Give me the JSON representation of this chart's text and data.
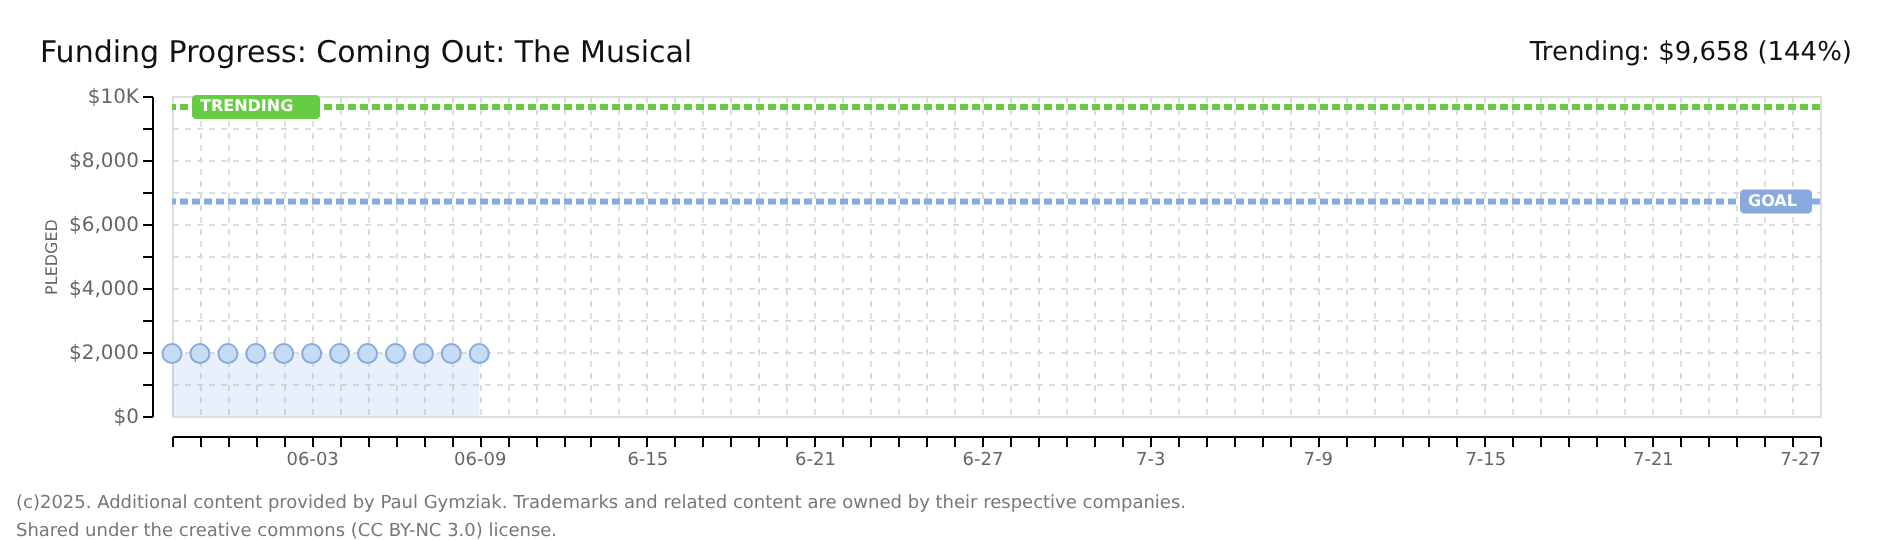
{
  "chart_data": {
    "type": "area",
    "title": "Funding Progress: Coming Out: The Musical",
    "ylabel": "PLEDGED",
    "x": [
      "2025-05-29",
      "2025-05-30",
      "2025-05-31",
      "2025-06-01",
      "2025-06-02",
      "2025-06-03",
      "2025-06-04",
      "2025-06-05",
      "2025-06-06",
      "2025-06-07",
      "2025-06-08",
      "2025-06-09"
    ],
    "series": [
      {
        "color": "#88aadd",
        "values": [
          1950,
          1950,
          1950,
          1950,
          1950,
          1950,
          1950,
          1950,
          1950,
          1950,
          1950,
          1950
        ]
      }
    ],
    "marker": "circle",
    "grid": true,
    "xlim": [
      "2025-05-29",
      "2025-07-27"
    ],
    "xticks": [
      {
        "value": "2025-05-29",
        "label": null
      },
      {
        "value": "2025-05-30",
        "label": null
      },
      {
        "value": "2025-05-31",
        "label": null
      },
      {
        "value": "2025-06-01",
        "label": null
      },
      {
        "value": "2025-06-02",
        "label": null
      },
      {
        "value": "2025-06-03",
        "label": "06-03"
      },
      {
        "value": "2025-06-04",
        "label": null
      },
      {
        "value": "2025-06-05",
        "label": null
      },
      {
        "value": "2025-06-06",
        "label": null
      },
      {
        "value": "2025-06-07",
        "label": null
      },
      {
        "value": "2025-06-08",
        "label": null
      },
      {
        "value": "2025-06-09",
        "label": "06-09"
      },
      {
        "value": "2025-06-10",
        "label": null
      },
      {
        "value": "2025-06-11",
        "label": null
      },
      {
        "value": "2025-06-12",
        "label": null
      },
      {
        "value": "2025-06-13",
        "label": null
      },
      {
        "value": "2025-06-14",
        "label": null
      },
      {
        "value": "2025-06-15",
        "label": "6-15"
      },
      {
        "value": "2025-06-16",
        "label": null
      },
      {
        "value": "2025-06-17",
        "label": null
      },
      {
        "value": "2025-06-18",
        "label": null
      },
      {
        "value": "2025-06-19",
        "label": null
      },
      {
        "value": "2025-06-20",
        "label": null
      },
      {
        "value": "2025-06-21",
        "label": "6-21"
      },
      {
        "value": "2025-06-22",
        "label": null
      },
      {
        "value": "2025-06-23",
        "label": null
      },
      {
        "value": "2025-06-24",
        "label": null
      },
      {
        "value": "2025-06-25",
        "label": null
      },
      {
        "value": "2025-06-26",
        "label": null
      },
      {
        "value": "2025-06-27",
        "label": "6-27"
      },
      {
        "value": "2025-06-28",
        "label": null
      },
      {
        "value": "2025-06-29",
        "label": null
      },
      {
        "value": "2025-06-30",
        "label": null
      },
      {
        "value": "2025-07-01",
        "label": null
      },
      {
        "value": "2025-07-02",
        "label": null
      },
      {
        "value": "2025-07-03",
        "label": "7-3"
      },
      {
        "value": "2025-07-04",
        "label": null
      },
      {
        "value": "2025-07-05",
        "label": null
      },
      {
        "value": "2025-07-06",
        "label": null
      },
      {
        "value": "2025-07-07",
        "label": null
      },
      {
        "value": "2025-07-08",
        "label": null
      },
      {
        "value": "2025-07-09",
        "label": "7-9"
      },
      {
        "value": "2025-07-10",
        "label": null
      },
      {
        "value": "2025-07-11",
        "label": null
      },
      {
        "value": "2025-07-12",
        "label": null
      },
      {
        "value": "2025-07-13",
        "label": null
      },
      {
        "value": "2025-07-14",
        "label": null
      },
      {
        "value": "2025-07-15",
        "label": "7-15"
      },
      {
        "value": "2025-07-16",
        "label": null
      },
      {
        "value": "2025-07-17",
        "label": null
      },
      {
        "value": "2025-07-18",
        "label": null
      },
      {
        "value": "2025-07-19",
        "label": null
      },
      {
        "value": "2025-07-20",
        "label": null
      },
      {
        "value": "2025-07-21",
        "label": "7-21"
      },
      {
        "value": "2025-07-22",
        "label": null
      },
      {
        "value": "2025-07-23",
        "label": null
      },
      {
        "value": "2025-07-24",
        "label": null
      },
      {
        "value": "2025-07-25",
        "label": null
      },
      {
        "value": "2025-07-26",
        "label": null
      },
      {
        "value": "2025-07-27",
        "label": "7-27"
      }
    ],
    "ylim": [
      0,
      10000
    ],
    "yticks": [
      {
        "value": 0,
        "label": "$0"
      },
      {
        "value": 1000,
        "label": null
      },
      {
        "value": 2000,
        "label": "$2,000"
      },
      {
        "value": 3000,
        "label": null
      },
      {
        "value": 4000,
        "label": "$4,000"
      },
      {
        "value": 5000,
        "label": null
      },
      {
        "value": 6000,
        "label": "$6,000"
      },
      {
        "value": 7000,
        "label": null
      },
      {
        "value": 8000,
        "label": "$8,000"
      },
      {
        "value": 9000,
        "label": null
      },
      {
        "value": 10000,
        "label": "$10K"
      }
    ],
    "ref_lines": [
      {
        "axis": "y",
        "value": 9658,
        "label": "TRENDING",
        "color": "#66cc44",
        "line_style": "dashed"
      },
      {
        "axis": "y",
        "value": 6700,
        "label": "GOAL",
        "color": "#88aadd",
        "line_style": "dashed"
      }
    ],
    "annotations": [
      "Trending: $9,658 (144%)",
      "(c)2025. Additional content provided by Paul Gymziak. Trademarks and related content are owned by their respective companies.",
      "Shared under the creative commons (CC BY-NC 3.0) license."
    ]
  }
}
